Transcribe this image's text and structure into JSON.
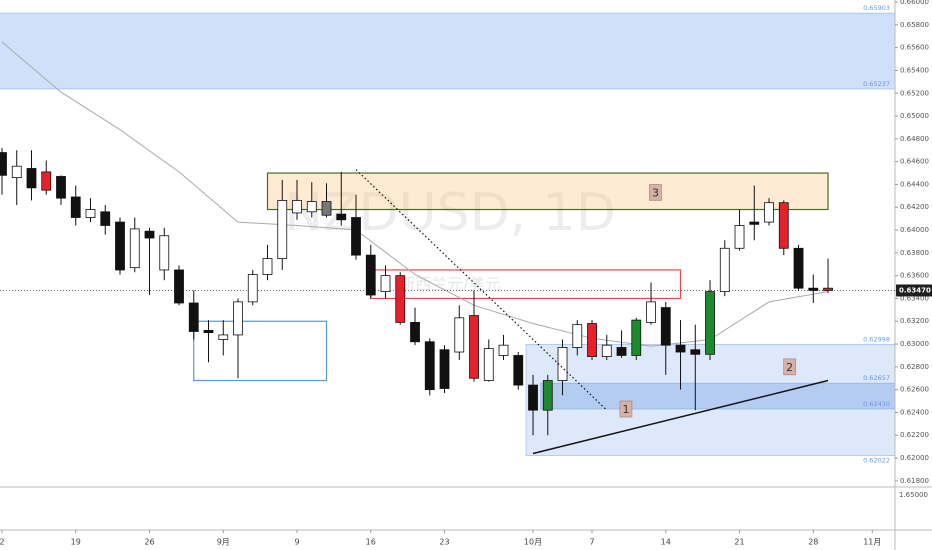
{
  "chart_data": {
    "type": "candlestick",
    "watermark": "NZDUSD, 1D",
    "watermark_sub": "新西兰元/美元",
    "xlim": [
      -0.1356,
      60.54
    ],
    "ylim": [
      0.61746,
      0.66018
    ],
    "xticks": [
      {
        "value": 0,
        "label": "2"
      },
      {
        "value": 5,
        "label": "19"
      },
      {
        "value": 10,
        "label": "26"
      },
      {
        "value": 15,
        "label": "9月"
      },
      {
        "value": 20,
        "label": "9"
      },
      {
        "value": 25,
        "label": "16"
      },
      {
        "value": 30,
        "label": "23"
      },
      {
        "value": 36,
        "label": "10月"
      },
      {
        "value": 40,
        "label": "7"
      },
      {
        "value": 45,
        "label": "14"
      },
      {
        "value": 50,
        "label": "21"
      },
      {
        "value": 55,
        "label": "28"
      },
      {
        "value": 59,
        "label": "11月"
      }
    ],
    "yticks": [
      {
        "value": 0.618,
        "label": "0.61800"
      },
      {
        "value": 0.62,
        "label": "0.62000"
      },
      {
        "value": 0.622,
        "label": "0.62200"
      },
      {
        "value": 0.624,
        "label": "0.62400"
      },
      {
        "value": 0.626,
        "label": "0.62600"
      },
      {
        "value": 0.628,
        "label": "0.62800"
      },
      {
        "value": 0.63,
        "label": "0.63000"
      },
      {
        "value": 0.632,
        "label": "0.63200"
      },
      {
        "value": 0.634,
        "label": "0.63400"
      },
      {
        "value": 0.636,
        "label": "0.63600"
      },
      {
        "value": 0.638,
        "label": "0.63800"
      },
      {
        "value": 0.64,
        "label": "0.64000"
      },
      {
        "value": 0.642,
        "label": "0.64200"
      },
      {
        "value": 0.644,
        "label": "0.64400"
      },
      {
        "value": 0.646,
        "label": "0.64600"
      },
      {
        "value": 0.648,
        "label": "0.64800"
      },
      {
        "value": 0.65,
        "label": "0.65000"
      },
      {
        "value": 0.652,
        "label": "0.65200"
      },
      {
        "value": 0.654,
        "label": "0.65400"
      },
      {
        "value": 0.656,
        "label": "0.65600"
      },
      {
        "value": 0.658,
        "label": "0.65800"
      },
      {
        "value": 0.66,
        "label": "0.66000"
      }
    ],
    "lower_pane_label": "1.65000",
    "open": [
      0.6468,
      0.6446,
      0.6454,
      0.6451,
      0.6447,
      0.6429,
      0.6411,
      0.6416,
      0.6407,
      0.6367,
      0.6399,
      0.6365,
      0.6365,
      0.6336,
      0.6312,
      0.6304,
      0.6308,
      0.6337,
      0.6361,
      0.6375,
      0.6415,
      0.6416,
      0.6413,
      0.6414,
      0.6411,
      0.6378,
      0.6346,
      0.636,
      0.6319,
      0.6302,
      0.6295,
      0.6293,
      0.6325,
      0.6268,
      0.629,
      0.629,
      0.6264,
      0.6242,
      0.6268,
      0.6297,
      0.6318,
      0.6289,
      0.6297,
      0.629,
      0.6319,
      0.6332,
      0.6299,
      0.6295,
      0.6291,
      0.6346,
      0.6384,
      0.6407,
      0.6407,
      0.6424,
      0.6384,
      0.6349,
      0.6349
    ],
    "high": [
      0.6472,
      0.647,
      0.647,
      0.6461,
      0.6448,
      0.6439,
      0.6428,
      0.6422,
      0.6411,
      0.6411,
      0.6402,
      0.6402,
      0.6369,
      0.6347,
      0.6321,
      0.6321,
      0.634,
      0.6365,
      0.6387,
      0.6444,
      0.6444,
      0.6442,
      0.6441,
      0.6451,
      0.6431,
      0.6387,
      0.6369,
      0.6363,
      0.6332,
      0.6305,
      0.6299,
      0.6334,
      0.6347,
      0.6304,
      0.6308,
      0.6293,
      0.6273,
      0.6273,
      0.6304,
      0.6321,
      0.6321,
      0.6308,
      0.6312,
      0.6323,
      0.6354,
      0.6337,
      0.6321,
      0.6317,
      0.6356,
      0.6391,
      0.6418,
      0.6439,
      0.6428,
      0.6426,
      0.6387,
      0.6361,
      0.6375
    ],
    "low": [
      0.6431,
      0.6422,
      0.6426,
      0.6431,
      0.6422,
      0.6404,
      0.6407,
      0.6396,
      0.6361,
      0.6363,
      0.6343,
      0.6356,
      0.6334,
      0.6304,
      0.6284,
      0.629,
      0.627,
      0.6334,
      0.6356,
      0.6365,
      0.6409,
      0.6411,
      0.6411,
      0.6404,
      0.6374,
      0.634,
      0.634,
      0.6317,
      0.6299,
      0.6255,
      0.6257,
      0.6286,
      0.6267,
      0.6267,
      0.6286,
      0.626,
      0.622,
      0.622,
      0.6255,
      0.629,
      0.6286,
      0.6286,
      0.6288,
      0.6286,
      0.6317,
      0.6273,
      0.626,
      0.6242,
      0.6286,
      0.6342,
      0.6382,
      0.6391,
      0.6404,
      0.6378,
      0.6347,
      0.6336,
      0.6345
    ],
    "close": [
      0.6448,
      0.6456,
      0.6437,
      0.6435,
      0.6428,
      0.6411,
      0.6418,
      0.6404,
      0.6365,
      0.6401,
      0.6393,
      0.6395,
      0.6336,
      0.6311,
      0.631,
      0.6308,
      0.6337,
      0.6361,
      0.6375,
      0.6426,
      0.6426,
      0.6425,
      0.6425,
      0.6409,
      0.6378,
      0.6343,
      0.636,
      0.6319,
      0.6302,
      0.626,
      0.6261,
      0.6323,
      0.627,
      0.6296,
      0.6299,
      0.6264,
      0.6242,
      0.6268,
      0.6297,
      0.6317,
      0.6289,
      0.6299,
      0.629,
      0.6321,
      0.6337,
      0.6299,
      0.6293,
      0.6291,
      0.6346,
      0.6384,
      0.6404,
      0.6405,
      0.6424,
      0.6384,
      0.6349,
      0.6347,
      0.6347
    ],
    "colors": [
      "#111111",
      "#ffffff",
      "#111111",
      "#e8202a",
      "#111111",
      "#111111",
      "#ffffff",
      "#111111",
      "#111111",
      "#ffffff",
      "#111111",
      "#ffffff",
      "#111111",
      "#111111",
      "#111111",
      "#ffffff",
      "#ffffff",
      "#ffffff",
      "#ffffff",
      "#ffffff",
      "#ffffff",
      "#ffffff",
      "#777777",
      "#111111",
      "#111111",
      "#111111",
      "#ffffff",
      "#e8202a",
      "#111111",
      "#111111",
      "#111111",
      "#ffffff",
      "#e8202a",
      "#ffffff",
      "#ffffff",
      "#111111",
      "#111111",
      "#1e8a2e",
      "#ffffff",
      "#ffffff",
      "#e8202a",
      "#ffffff",
      "#111111",
      "#1e8a2e",
      "#ffffff",
      "#111111",
      "#111111",
      "#111111",
      "#1e8a2e",
      "#ffffff",
      "#ffffff",
      "#111111",
      "#ffffff",
      "#e8202a",
      "#111111",
      "#111111",
      "#e8202a"
    ],
    "ma": {
      "x": [
        0,
        4,
        8,
        12,
        16,
        20,
        24,
        28,
        32,
        36,
        40,
        44,
        48,
        52,
        56
      ],
      "values": [
        0.6565,
        0.6521,
        0.6488,
        0.6451,
        0.6407,
        0.6404,
        0.64,
        0.6361,
        0.6334,
        0.6318,
        0.6305,
        0.6298,
        0.6304,
        0.6337,
        0.6346
      ],
      "color": "#aaaaaa"
    },
    "zones": [
      {
        "start": 0,
        "top": {
          "value": 0.65903,
          "label": "0.65903"
        },
        "bottom": {
          "value": 0.65237,
          "label": "0.65237"
        },
        "color": "rgba(120,165,235,0.35)"
      },
      {
        "start": 36,
        "top": {
          "value": 0.62998,
          "label": "0.62998"
        },
        "bottom": {
          "value": 0.62022,
          "label": "0.62022"
        },
        "color": "rgba(120,165,235,0.25)"
      },
      {
        "start": 37,
        "top": {
          "value": 0.62657,
          "label": "0.62657"
        },
        "bottom": {
          "value": 0.6243,
          "label": "0.62430"
        },
        "color": "rgba(90,140,225,0.3)"
      }
    ],
    "boxes": [
      {
        "start": 18,
        "end": 56,
        "top": 0.645,
        "bottom": 0.6418,
        "fill": "rgba(255,196,130,0.35)",
        "stroke": "#4a6a2a"
      },
      {
        "start": 25,
        "end": 46,
        "top": 0.6365,
        "bottom": 0.634,
        "fill": "none",
        "stroke": "#e84a4a"
      },
      {
        "start": 13,
        "end": 22,
        "top": 0.632,
        "bottom": 0.6268,
        "fill": "none",
        "stroke": "#5a9ad6"
      }
    ],
    "lines": [
      {
        "x": [
          36,
          56
        ],
        "values": [
          0.6204,
          0.6268
        ],
        "dash": "none"
      },
      {
        "x": [
          24,
          41
        ],
        "values": [
          0.6453,
          0.6242
        ],
        "dash": "1.5,2.5"
      }
    ],
    "labels": [
      {
        "text": "1",
        "x": 42.3,
        "y": 0.6243
      },
      {
        "text": "2",
        "x": 53.4,
        "y": 0.628
      },
      {
        "text": "3",
        "x": 44.3,
        "y": 0.6433
      }
    ],
    "last_price": {
      "value": 0.6347,
      "label": "0.63470"
    }
  }
}
